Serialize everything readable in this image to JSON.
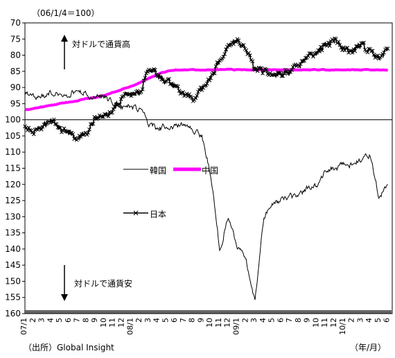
{
  "chart_data": {
    "type": "line",
    "unit_note": "（06/1/4＝100）",
    "source": "（出所）Global Insight",
    "x_unit": "（年/月）",
    "ylim": [
      70,
      160
    ],
    "y_inverted": true,
    "y_ticks": [
      70,
      75,
      80,
      85,
      90,
      95,
      100,
      105,
      110,
      115,
      120,
      125,
      130,
      135,
      140,
      145,
      150,
      155,
      160
    ],
    "x_tick_labels": [
      "07/1",
      "2",
      "3",
      "4",
      "5",
      "6",
      "7",
      "8",
      "9",
      "10",
      "11",
      "12",
      "08/1",
      "2",
      "3",
      "4",
      "5",
      "6",
      "7",
      "8",
      "9",
      "10",
      "11",
      "12",
      "09/1",
      "2",
      "3",
      "4",
      "5",
      "6",
      "7",
      "8",
      "9",
      "10",
      "11",
      "12",
      "10/1",
      "2",
      "3",
      "4",
      "5",
      "6"
    ],
    "reference_line": 100,
    "annotations": {
      "up": "対ドルで通貨高",
      "down": "対ドルで通貨安"
    },
    "legend": {
      "korea": "韓国",
      "china": "中国",
      "japan": "日本"
    },
    "colors": {
      "korea": "#000000",
      "china": "#ff00ff",
      "japan": "#000000"
    },
    "x": [
      "07/1",
      "07/2",
      "07/3",
      "07/4",
      "07/5",
      "07/6",
      "07/7",
      "07/8",
      "07/9",
      "07/10",
      "07/11",
      "07/12",
      "08/1",
      "08/2",
      "08/3",
      "08/4",
      "08/5",
      "08/6",
      "08/7",
      "08/8",
      "08/9",
      "08/10",
      "08/11",
      "08/12",
      "09/1",
      "09/2",
      "09/3",
      "09/4",
      "09/5",
      "09/6",
      "09/7",
      "09/8",
      "09/9",
      "09/10",
      "09/11",
      "09/12",
      "10/1",
      "10/2",
      "10/3",
      "10/4",
      "10/5",
      "10/6"
    ],
    "series": [
      {
        "name": "韓国",
        "key": "korea",
        "values": [
          92,
          93,
          92.5,
          92,
          92,
          92,
          91,
          92,
          92.5,
          93,
          95,
          96,
          96,
          97,
          101,
          103,
          102,
          102,
          101,
          103,
          105,
          117,
          140,
          130,
          140,
          143,
          156,
          130,
          126,
          125,
          124,
          124,
          121,
          120,
          116,
          115,
          114,
          114,
          112,
          111,
          124,
          120
        ]
      },
      {
        "name": "中国",
        "key": "china",
        "values": [
          97,
          96.5,
          96,
          95.5,
          95,
          94.5,
          94,
          93.5,
          93,
          92.5,
          91.5,
          90.5,
          89.5,
          88.5,
          87,
          86,
          85,
          84.5,
          84.5,
          84.5,
          84.5,
          84.5,
          84.5,
          84.5,
          84.5,
          84.5,
          84.5,
          84.5,
          84.5,
          84.5,
          84.5,
          84.5,
          84.5,
          84.5,
          84.5,
          84.5,
          84.5,
          84.5,
          84.5,
          84.5,
          84.5,
          84.5
        ]
      },
      {
        "name": "日本",
        "key": "japan",
        "values": [
          102,
          104,
          102,
          100,
          103,
          104,
          106,
          104,
          99,
          99,
          97,
          93,
          92,
          92,
          84,
          86,
          88,
          90,
          92,
          94,
          90,
          87,
          82,
          77,
          76,
          78,
          85,
          85,
          86,
          86,
          85,
          83,
          81,
          79,
          77,
          75,
          78,
          79,
          77,
          79,
          81,
          78
        ]
      }
    ]
  }
}
